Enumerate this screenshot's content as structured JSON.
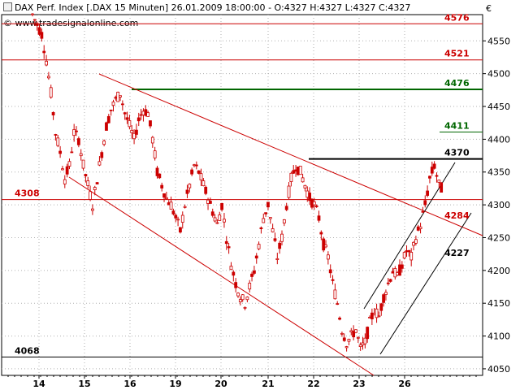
{
  "header": {
    "title": "DAX Perf. Index [.DAX  15 Minuten]",
    "datetime": "26.01.2009 18:00:00",
    "ohlc": "- O:4327 H:4327 L:4327 C:4327",
    "watermark": "© www.tradesignalonline.com",
    "currency": "€"
  },
  "colors": {
    "background": "#ffffff",
    "grid": "#b0b0b0",
    "candle": "#cc0000",
    "red_line": "#cc0000",
    "green_line": "#006600",
    "black_line": "#000000",
    "label_red": "#cc0000",
    "label_green": "#006600"
  },
  "chart_data": {
    "type": "candlestick",
    "title": "DAX Perf. Index [.DAX  15 Minuten]",
    "x_ticks": [
      "14",
      "15",
      "16",
      "19",
      "20",
      "21",
      "22",
      "23",
      "26"
    ],
    "y_ticks": [
      4050,
      4100,
      4150,
      4200,
      4250,
      4300,
      4350,
      4400,
      4450,
      4500,
      4550
    ],
    "ylim": [
      4040,
      4590
    ],
    "grid": true,
    "horizontal_levels": [
      {
        "value": 4576,
        "label": "4576",
        "color": "red",
        "label_side": "right"
      },
      {
        "value": 4521,
        "label": "4521",
        "color": "red",
        "label_side": "right"
      },
      {
        "value": 4476,
        "label": "4476",
        "color": "green",
        "label_side": "right"
      },
      {
        "value": 4411,
        "label": "4411",
        "color": "green",
        "label_side": "right"
      },
      {
        "value": 4370,
        "label": "4370",
        "color": "black",
        "label_side": "right"
      },
      {
        "value": 4308,
        "label": "4308",
        "color": "red",
        "label_side": "left"
      },
      {
        "value": 4068,
        "label": "4068",
        "color": "black",
        "label_side": "left"
      }
    ],
    "trendline_labels": [
      {
        "value": 4284,
        "label": "4284",
        "color": "red"
      },
      {
        "value": 4227,
        "label": "4227",
        "color": "black"
      }
    ],
    "close_path": [
      4590,
      4575,
      4560,
      4520,
      4470,
      4410,
      4380,
      4340,
      4360,
      4410,
      4400,
      4360,
      4330,
      4300,
      4340,
      4380,
      4420,
      4445,
      4460,
      4470,
      4440,
      4420,
      4400,
      4430,
      4445,
      4440,
      4400,
      4350,
      4330,
      4310,
      4300,
      4280,
      4260,
      4300,
      4330,
      4360,
      4350,
      4330,
      4310,
      4290,
      4270,
      4300,
      4250,
      4210,
      4180,
      4160,
      4150,
      4175,
      4200,
      4240,
      4280,
      4300,
      4260,
      4220,
      4250,
      4300,
      4340,
      4360,
      4350,
      4330,
      4310,
      4300,
      4280,
      4240,
      4220,
      4180,
      4150,
      4110,
      4090,
      4100,
      4110,
      4080,
      4090,
      4120,
      4140,
      4130,
      4160,
      4180,
      4200,
      4190,
      4210,
      4230,
      4220,
      4250,
      4270,
      4300,
      4340,
      4360,
      4330,
      4320
    ]
  }
}
